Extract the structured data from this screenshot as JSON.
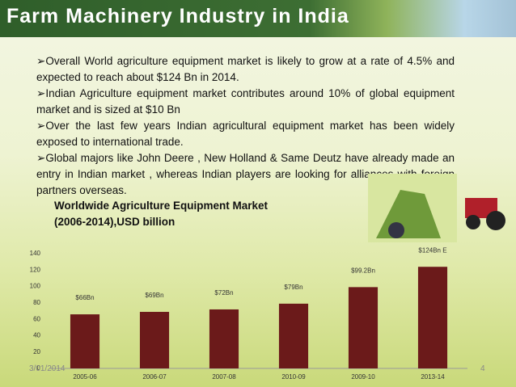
{
  "header": {
    "title": "Farm Machinery Industry in India"
  },
  "bullets": [
    "Overall World agriculture equipment market is likely to grow at a rate of 4.5% and expected to reach about $124 Bn in 2014.",
    "Indian Agriculture equipment market contributes around 10% of global equipment market and is sized at $10 Bn",
    "Over the last few years Indian agricultural equipment market has been widely exposed to international trade.",
    "Global majors like John Deere , New Holland & Same Deutz have already made an entry in Indian market , whereas Indian players are looking for alliances with foreign partners overseas."
  ],
  "chart_data": {
    "type": "bar",
    "title": "Worldwide Agriculture Equipment Market",
    "subtitle": "(2006-2014),USD billion",
    "categories": [
      "2005-06",
      "2006-07",
      "2007-08",
      "2010-09",
      "2009-10",
      "2013-14"
    ],
    "values": [
      66,
      69,
      72,
      79,
      99.2,
      124
    ],
    "value_labels": [
      "$66Bn",
      "$69Bn",
      "$72Bn",
      "$79Bn",
      "$99.2Bn",
      "$124Bn E"
    ],
    "color": "#6b1a1a",
    "ylim": [
      0,
      140
    ],
    "yticks": [
      0,
      20,
      40,
      60,
      80,
      100,
      120,
      140
    ],
    "grid": false
  },
  "footer": {
    "date": "3/01/2014",
    "page": "4"
  }
}
